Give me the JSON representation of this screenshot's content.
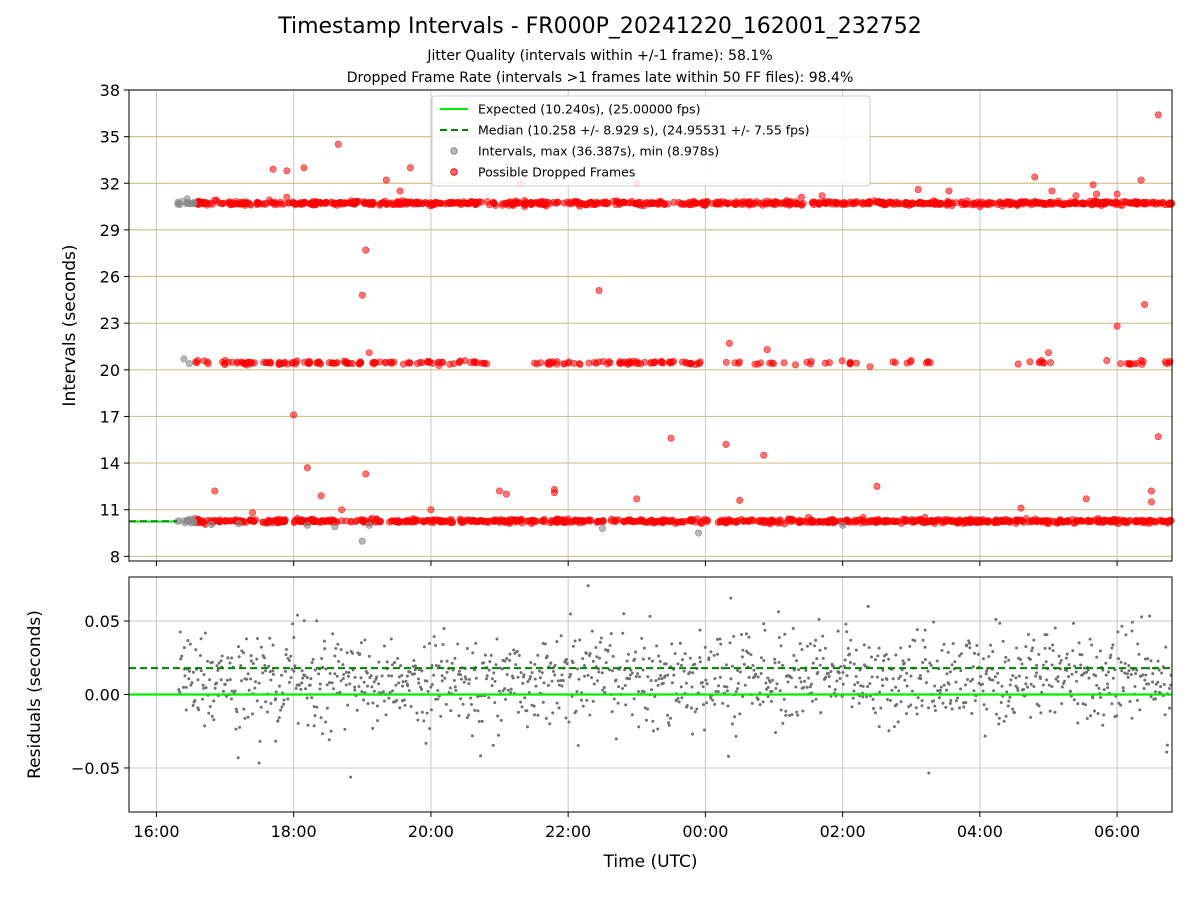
{
  "title": "Timestamp Intervals - FR000P_20241220_162001_232752",
  "subtitle_1": "Jitter Quality (intervals within +/-1 frame): 58.1%",
  "subtitle_2": "Dropped Frame Rate (intervals >1 frames late within 50 FF files): 98.4%",
  "colors": {
    "expected": "#00ee00",
    "median": "#008000",
    "intervals": "#8a8a8a",
    "dropped": "#ff0000",
    "hgrid_top": "#d4c08a",
    "grid": "#c8c8c8",
    "residuals": "#707070"
  },
  "chart_data": [
    {
      "type": "scatter",
      "id": "intervals",
      "ylabel": "Intervals (seconds)",
      "x_unit": "hours since 16:00 UTC",
      "xlim": [
        -0.4,
        14.8
      ],
      "ylim": [
        7.7,
        38
      ],
      "yticks": [
        8,
        11,
        14,
        17,
        20,
        23,
        26,
        29,
        32,
        35,
        38
      ],
      "xticks": [
        0,
        2,
        4,
        6,
        8,
        10,
        12,
        14
      ],
      "xtick_labels": [
        "16:00",
        "18:00",
        "20:00",
        "22:00",
        "00:00",
        "02:00",
        "04:00",
        "06:00"
      ],
      "grid": "horizontal",
      "legend": {
        "placement": "top-center",
        "entries": [
          "Expected (10.240s), (25.00000 fps)",
          "Median (10.258 +/- 8.929 s), (24.95531 +/- 7.55 fps)",
          "Intervals, max (36.387s), min (8.978s)",
          "Possible Dropped Frames"
        ]
      },
      "expected_line": 10.24,
      "median_line": 10.258,
      "bands": [
        {
          "name": "band-10",
          "y": 10.26,
          "x_start": 0.55,
          "x_end": 14.8,
          "color": "dropped"
        },
        {
          "name": "band-20",
          "y": 20.45,
          "x_start": 0.5,
          "x_end": 14.8,
          "color": "dropped",
          "sparse": true
        },
        {
          "name": "band-30",
          "y": 30.72,
          "x_start": 0.55,
          "x_end": 14.8,
          "color": "dropped"
        },
        {
          "name": "band-10-early",
          "y": 10.26,
          "x_start": 0.3,
          "x_end": 0.55,
          "color": "intervals"
        },
        {
          "name": "band-30-early",
          "y": 30.72,
          "x_start": 0.3,
          "x_end": 0.55,
          "color": "intervals"
        }
      ],
      "gray_points": [
        [
          0.4,
          20.7
        ],
        [
          0.48,
          20.4
        ],
        [
          0.45,
          31.0
        ],
        [
          2.2,
          10.0
        ],
        [
          2.6,
          9.9
        ],
        [
          3.1,
          10.0
        ],
        [
          3.0,
          8.98
        ],
        [
          6.5,
          9.8
        ],
        [
          7.9,
          9.5
        ],
        [
          10.0,
          10.0
        ],
        [
          0.8,
          10.05
        ],
        [
          1.2,
          10.1
        ]
      ],
      "red_points": [
        [
          1.7,
          32.9
        ],
        [
          1.9,
          32.8
        ],
        [
          2.15,
          33.0
        ],
        [
          2.65,
          34.5
        ],
        [
          3.7,
          33.0
        ],
        [
          3.35,
          32.2
        ],
        [
          3.55,
          31.5
        ],
        [
          5.3,
          32.0
        ],
        [
          7.0,
          32.0
        ],
        [
          11.1,
          31.6
        ],
        [
          11.55,
          31.5
        ],
        [
          12.8,
          32.4
        ],
        [
          13.05,
          31.5
        ],
        [
          13.4,
          31.2
        ],
        [
          13.65,
          31.9
        ],
        [
          13.7,
          31.3
        ],
        [
          14.0,
          31.3
        ],
        [
          14.35,
          32.2
        ],
        [
          14.6,
          36.4
        ],
        [
          9.4,
          31.1
        ],
        [
          9.7,
          31.2
        ],
        [
          3.05,
          27.7
        ],
        [
          3.0,
          24.8
        ],
        [
          3.1,
          21.1
        ],
        [
          6.45,
          25.1
        ],
        [
          8.35,
          21.7
        ],
        [
          8.9,
          21.3
        ],
        [
          13.0,
          21.1
        ],
        [
          14.0,
          22.8
        ],
        [
          14.4,
          24.2
        ],
        [
          14.35,
          20.6
        ],
        [
          11.0,
          20.6
        ],
        [
          12.9,
          20.6
        ],
        [
          13.85,
          20.6
        ],
        [
          10.4,
          20.2
        ],
        [
          2.0,
          17.1
        ],
        [
          2.2,
          13.7
        ],
        [
          2.4,
          11.9
        ],
        [
          2.7,
          11.0
        ],
        [
          3.05,
          13.3
        ],
        [
          4.0,
          11.0
        ],
        [
          5.0,
          12.2
        ],
        [
          5.1,
          12.0
        ],
        [
          5.8,
          12.3
        ],
        [
          5.8,
          12.1
        ],
        [
          7.0,
          11.7
        ],
        [
          7.5,
          15.6
        ],
        [
          8.3,
          15.2
        ],
        [
          8.5,
          11.6
        ],
        [
          8.85,
          14.5
        ],
        [
          10.5,
          12.5
        ],
        [
          12.6,
          11.1
        ],
        [
          13.55,
          11.7
        ],
        [
          14.5,
          12.2
        ],
        [
          14.5,
          11.5
        ],
        [
          14.6,
          15.7
        ],
        [
          14.9,
          11.6
        ],
        [
          14.95,
          11.1
        ],
        [
          15.2,
          12.5
        ],
        [
          15.35,
          11.2
        ],
        [
          15.5,
          12.7
        ],
        [
          0.85,
          12.2
        ],
        [
          1.4,
          10.8
        ],
        [
          11.2,
          10.5
        ],
        [
          6.0,
          10.4
        ],
        [
          9.5,
          10.5
        ],
        [
          10.3,
          10.5
        ],
        [
          1.0,
          20.6
        ],
        [
          1.3,
          20.4
        ],
        [
          0.6,
          20.6
        ],
        [
          0.85,
          30.9
        ],
        [
          1.3,
          30.8
        ],
        [
          1.9,
          31.1
        ],
        [
          12.0,
          30.5
        ],
        [
          8.0,
          30.6
        ]
      ]
    },
    {
      "type": "scatter",
      "id": "residuals",
      "ylabel": "Residuals (seconds)",
      "xlabel": "Time (UTC)",
      "xlim": [
        -0.4,
        14.8
      ],
      "ylim": [
        -0.08,
        0.08
      ],
      "yticks": [
        -0.05,
        0.0,
        0.05
      ],
      "ytick_labels": [
        "−0.05",
        "0.00",
        "0.05"
      ],
      "xticks": [
        0,
        2,
        4,
        6,
        8,
        10,
        12,
        14
      ],
      "xtick_labels": [
        "16:00",
        "18:00",
        "20:00",
        "22:00",
        "00:00",
        "02:00",
        "04:00",
        "06:00"
      ],
      "grid": "both",
      "expected_line": 0.0,
      "median_line": 0.018,
      "points_summary": {
        "x_start": 0.33,
        "x_end": 14.8,
        "count": 1300,
        "mean": 0.01,
        "std": 0.016
      }
    }
  ]
}
